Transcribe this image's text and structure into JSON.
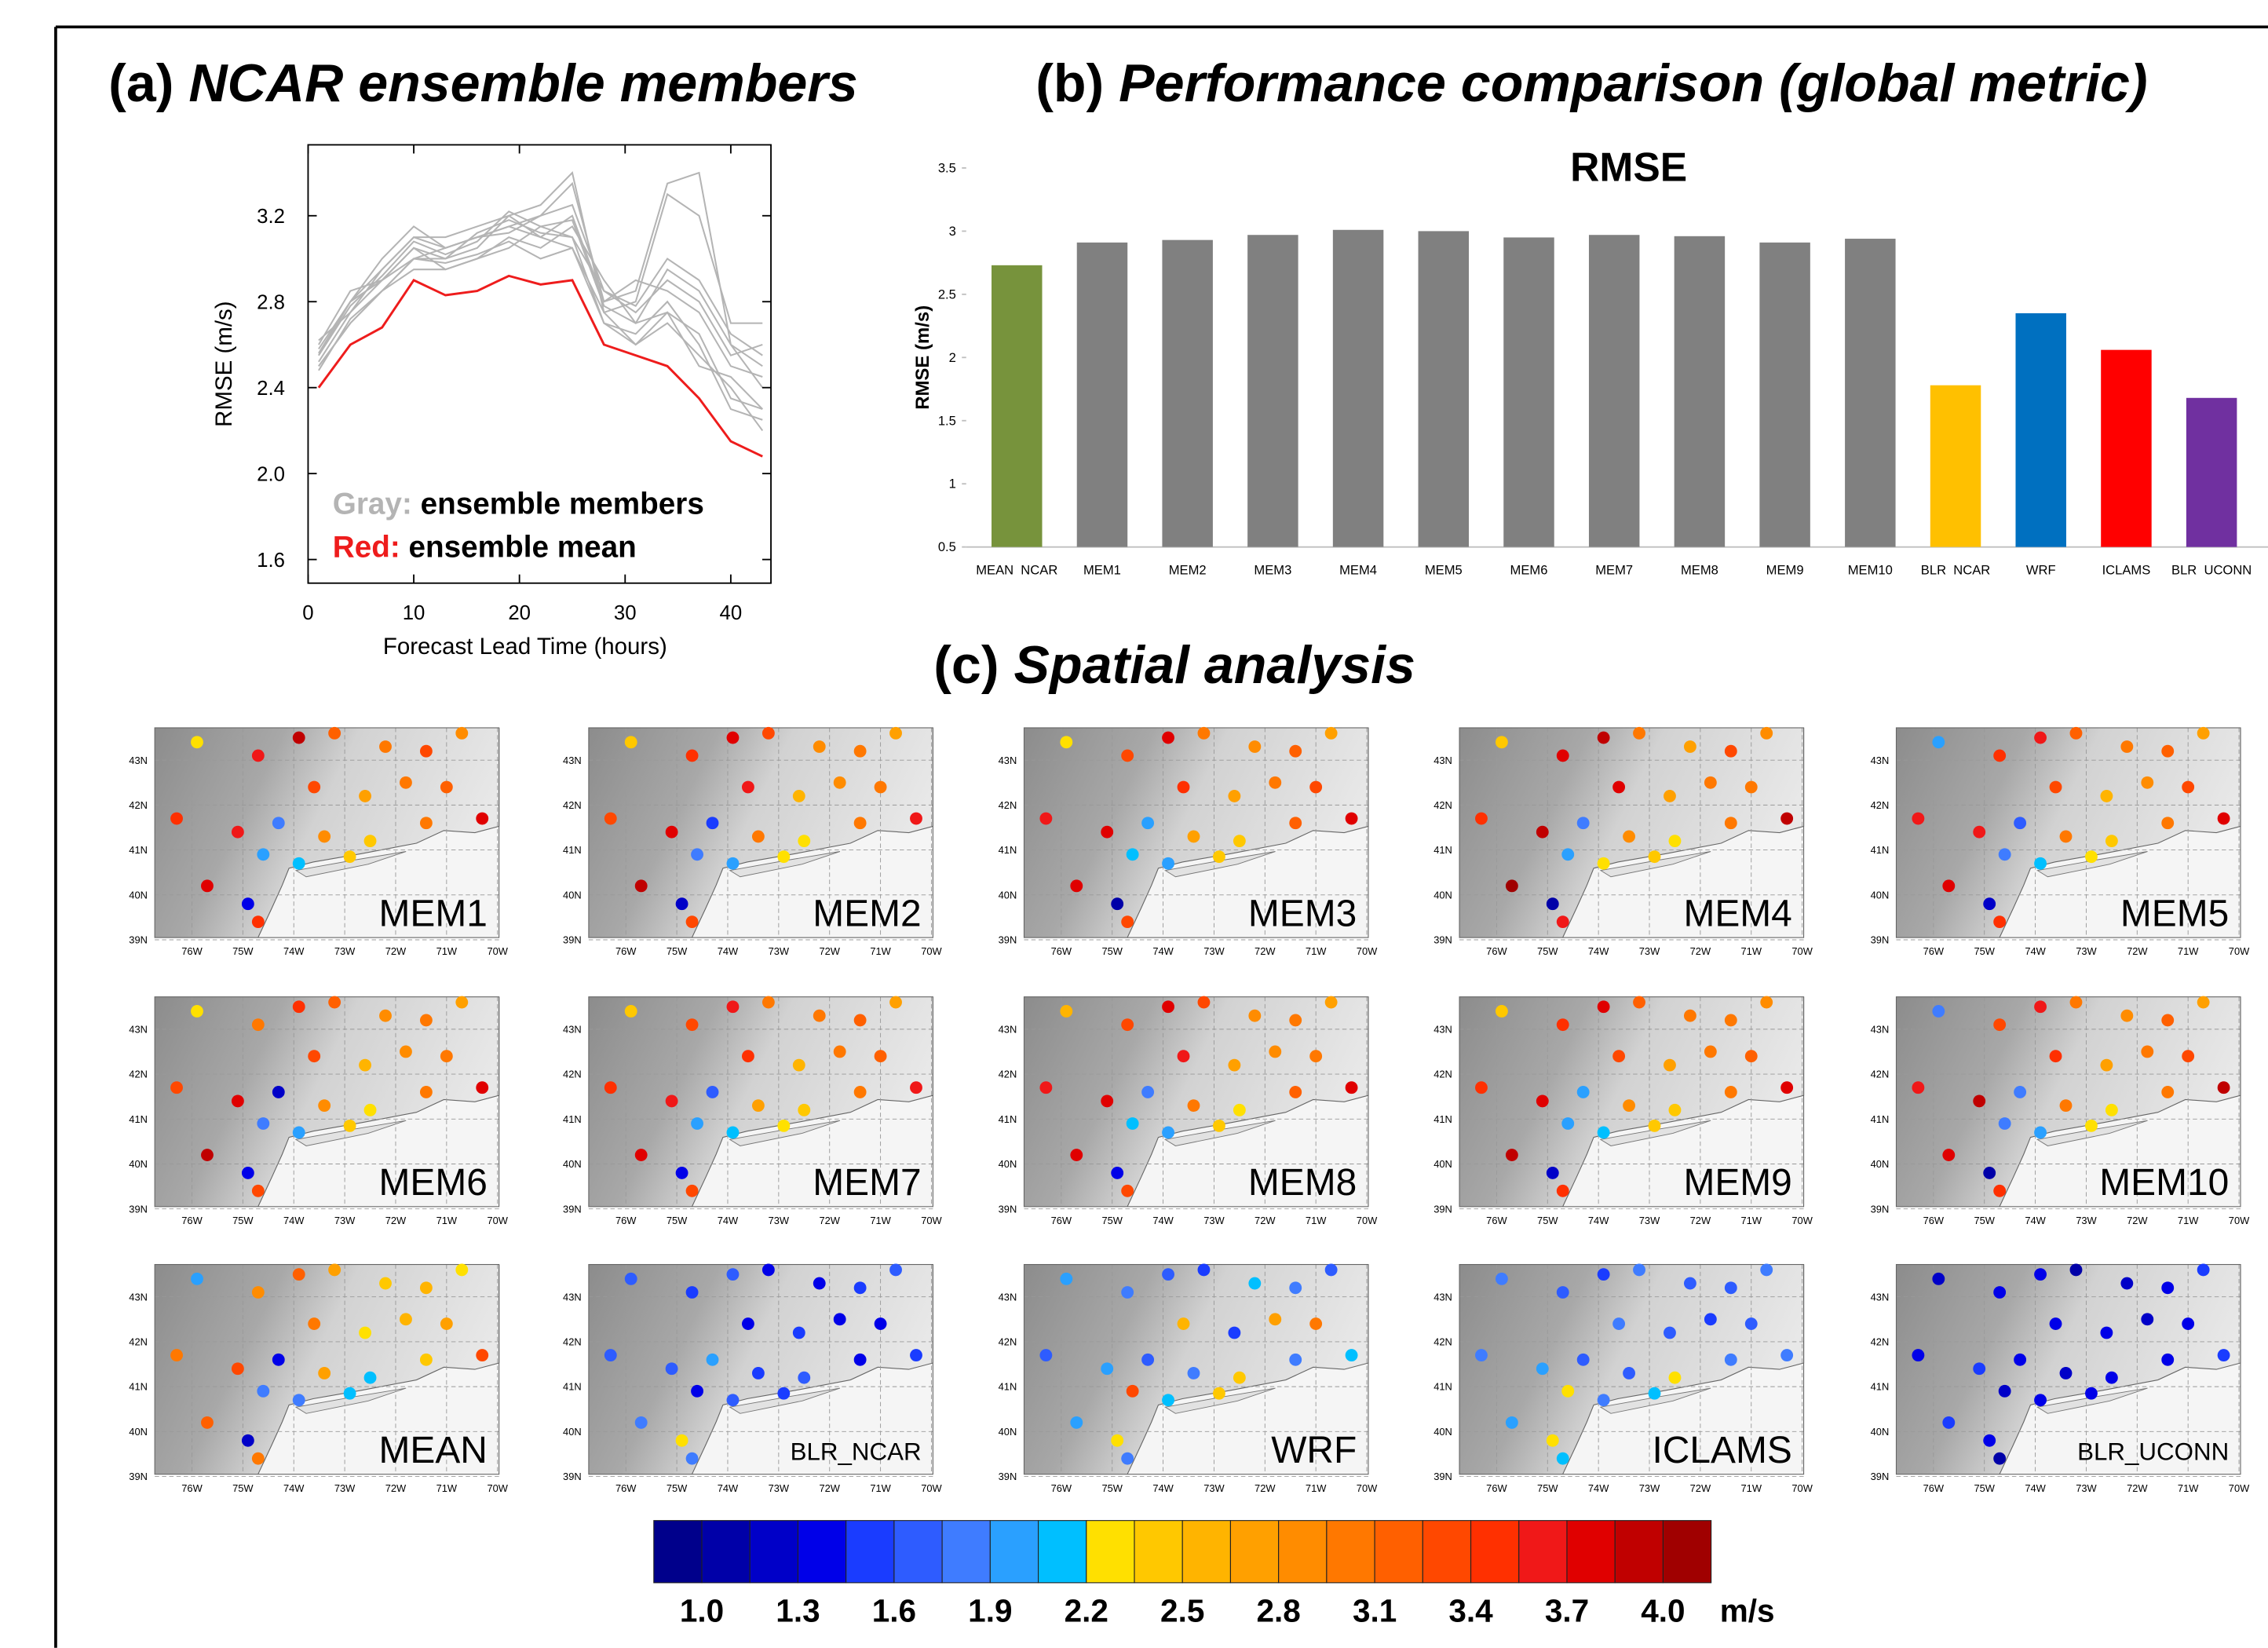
{
  "chart_data": [
    {
      "type": "line",
      "label": "(a)",
      "title": "NCAR ensemble members",
      "xlabel": "Forecast Lead Time (hours)",
      "ylabel": "RMSE (m/s)",
      "x": [
        1,
        4,
        7,
        10,
        13,
        16,
        19,
        22,
        25,
        28,
        31,
        34,
        37,
        40,
        43
      ],
      "series": [
        {
          "color": "#b4b4b4",
          "values": [
            2.55,
            2.8,
            2.95,
            3.1,
            3.05,
            3.1,
            3.15,
            3.2,
            3.35,
            2.8,
            2.85,
            3.35,
            3.4,
            2.6,
            2.4
          ]
        },
        {
          "color": "#b4b4b4",
          "values": [
            2.5,
            2.7,
            2.85,
            3.0,
            3.0,
            3.05,
            3.2,
            3.25,
            3.4,
            2.75,
            2.8,
            3.3,
            3.2,
            2.7,
            2.7
          ]
        },
        {
          "color": "#b4b4b4",
          "values": [
            2.6,
            2.85,
            2.9,
            3.05,
            2.95,
            3.0,
            3.1,
            3.05,
            3.15,
            2.9,
            2.7,
            2.75,
            2.65,
            2.35,
            2.3
          ]
        },
        {
          "color": "#b4b4b4",
          "values": [
            2.52,
            2.75,
            2.95,
            3.1,
            3.1,
            3.15,
            3.2,
            3.1,
            3.05,
            2.75,
            2.6,
            2.7,
            2.55,
            2.4,
            2.2
          ]
        },
        {
          "color": "#b4b4b4",
          "values": [
            2.58,
            2.8,
            3.0,
            3.15,
            3.05,
            3.1,
            3.15,
            3.1,
            3.2,
            2.8,
            2.9,
            2.85,
            2.75,
            2.5,
            2.45
          ]
        },
        {
          "color": "#b4b4b4",
          "values": [
            2.5,
            2.7,
            2.85,
            2.95,
            2.95,
            3.0,
            3.05,
            3.15,
            3.1,
            2.7,
            2.65,
            2.8,
            2.6,
            2.3,
            2.25
          ]
        },
        {
          "color": "#b4b4b4",
          "values": [
            2.62,
            2.75,
            2.9,
            3.05,
            3.0,
            3.12,
            3.18,
            3.12,
            3.1,
            2.85,
            2.75,
            2.9,
            2.8,
            2.55,
            2.6
          ]
        },
        {
          "color": "#b4b4b4",
          "values": [
            2.48,
            2.72,
            2.85,
            3.0,
            2.98,
            3.02,
            3.08,
            3.0,
            3.05,
            2.7,
            2.6,
            2.75,
            2.5,
            2.45,
            2.3
          ]
        },
        {
          "color": "#b4b4b4",
          "values": [
            2.55,
            2.78,
            2.92,
            3.08,
            3.02,
            3.08,
            3.22,
            3.15,
            3.18,
            2.78,
            2.7,
            2.95,
            2.85,
            2.6,
            2.5
          ]
        },
        {
          "color": "#b4b4b4",
          "values": [
            2.56,
            2.8,
            2.9,
            3.0,
            3.05,
            3.1,
            3.12,
            3.2,
            3.25,
            2.85,
            2.78,
            3.0,
            2.9,
            2.65,
            2.55
          ]
        },
        {
          "color": "#ee1c1c",
          "values": [
            2.4,
            2.6,
            2.68,
            2.9,
            2.83,
            2.85,
            2.92,
            2.88,
            2.9,
            2.6,
            2.55,
            2.5,
            2.35,
            2.15,
            2.08
          ]
        }
      ],
      "legend": [
        {
          "key": "Gray:",
          "text": "ensemble members",
          "series": 0
        },
        {
          "key": "Red:",
          "text": "ensemble mean",
          "series": 10
        }
      ],
      "xlim": [
        0,
        43.8
      ],
      "ylim": [
        1.49,
        3.53
      ],
      "xticks": [
        0,
        10,
        20,
        30,
        40
      ],
      "yticks": [
        1.6,
        {
          "value": 2,
          "label": "2.0"
        },
        2.4,
        2.8,
        3.2
      ]
    },
    {
      "type": "bar",
      "label": "(b)",
      "title": "Performance comparison (global metric)",
      "subtitle": "RMSE",
      "ylabel": "RMSE (m/s)",
      "categories": [
        "MEAN  NCAR",
        "MEM1",
        "MEM2",
        "MEM3",
        "MEM4",
        "MEM5",
        "MEM6",
        "MEM7",
        "MEM8",
        "MEM9",
        "MEM10",
        "BLR  NCAR",
        "WRF",
        "ICLAMS",
        "BLR  UCONN"
      ],
      "values": [
        2.73,
        2.91,
        2.93,
        2.97,
        3.01,
        3.0,
        2.95,
        2.97,
        2.96,
        2.91,
        2.94,
        1.78,
        2.35,
        2.06,
        1.68
      ],
      "colors": [
        "#77933c",
        "#808080",
        "#808080",
        "#808080",
        "#808080",
        "#808080",
        "#808080",
        "#808080",
        "#808080",
        "#808080",
        "#808080",
        "#ffc000",
        "#0070c0",
        "#ff0000",
        "#7030a0"
      ],
      "ylim": [
        0.5,
        3.5
      ],
      "yticks": [
        0.5,
        1,
        1.5,
        2,
        2.5,
        3,
        3.5
      ]
    },
    {
      "type": "map",
      "label": "(c)",
      "title": "Spatial analysis",
      "lonlim": [
        -76.73,
        -69.97
      ],
      "latlim": [
        39.05,
        43.72
      ],
      "lonticks": [
        {
          "value": -76,
          "label": "76W"
        },
        {
          "value": -75,
          "label": "75W"
        },
        {
          "value": -74,
          "label": "74W"
        },
        {
          "value": -73,
          "label": "73W"
        },
        {
          "value": -72,
          "label": "72W"
        },
        {
          "value": -71,
          "label": "71W"
        },
        {
          "value": -70,
          "label": "70W"
        }
      ],
      "latticks": [
        {
          "value": 39,
          "label": "39N"
        },
        {
          "value": 40,
          "label": "40N"
        },
        {
          "value": 41,
          "label": "41N"
        },
        {
          "value": 42,
          "label": "42N"
        },
        {
          "value": 43,
          "label": "43N"
        }
      ],
      "stations": {
        "lon": [
          -75.9,
          -74.7,
          -73.9,
          -73.2,
          -72.2,
          -71.4,
          -70.7,
          -73.6,
          -72.6,
          -71.8,
          -71.0,
          -76.3,
          -75.1,
          -74.3,
          -73.4,
          -72.5,
          -71.4,
          -70.3,
          -74.6,
          -73.9,
          -72.9,
          -75.7,
          -74.9,
          -74.7
        ],
        "lat": [
          43.4,
          43.1,
          43.5,
          43.6,
          43.3,
          43.2,
          43.6,
          42.4,
          42.2,
          42.5,
          42.4,
          41.7,
          41.4,
          41.6,
          41.3,
          41.2,
          41.6,
          41.7,
          40.9,
          40.7,
          40.85,
          40.2,
          39.8,
          39.4
        ]
      },
      "maps": [
        {
          "name": "MEM1",
          "values": [
            2.3,
            3.6,
            3.9,
            3.2,
            3.0,
            3.3,
            2.9,
            3.4,
            2.7,
            3.0,
            3.2,
            3.5,
            3.6,
            1.9,
            2.9,
            2.4,
            3.1,
            3.8,
            2.0,
            2.1,
            2.4,
            3.7,
            1.3,
            3.5
          ]
        },
        {
          "name": "MEM2",
          "values": [
            2.4,
            3.5,
            3.7,
            3.3,
            2.9,
            3.1,
            2.8,
            3.6,
            2.6,
            2.9,
            3.1,
            3.4,
            3.8,
            1.5,
            3.0,
            2.3,
            3.0,
            3.6,
            1.9,
            2.0,
            2.3,
            3.9,
            1.2,
            3.4
          ]
        },
        {
          "name": "MEM3",
          "values": [
            2.2,
            3.4,
            3.8,
            3.1,
            2.9,
            3.2,
            2.7,
            3.5,
            2.8,
            3.0,
            3.3,
            3.6,
            3.7,
            2.0,
            2.8,
            2.4,
            3.2,
            3.7,
            2.1,
            2.0,
            2.5,
            3.8,
            1.1,
            3.3
          ]
        },
        {
          "name": "MEM4",
          "values": [
            2.5,
            3.7,
            3.9,
            3.0,
            2.8,
            3.3,
            2.9,
            3.7,
            2.7,
            3.1,
            3.0,
            3.5,
            3.9,
            1.8,
            2.9,
            2.3,
            3.1,
            3.9,
            2.0,
            2.2,
            2.4,
            4.0,
            1.0,
            3.6
          ]
        },
        {
          "name": "MEM5",
          "values": [
            2.0,
            3.5,
            3.6,
            3.2,
            3.1,
            3.2,
            2.8,
            3.4,
            2.6,
            2.9,
            3.4,
            3.6,
            3.6,
            1.7,
            3.0,
            2.5,
            3.0,
            3.8,
            1.9,
            2.1,
            2.3,
            3.8,
            1.2,
            3.5
          ]
        },
        {
          "name": "MEM6",
          "values": [
            2.3,
            3.0,
            3.5,
            3.2,
            2.9,
            3.1,
            2.8,
            3.3,
            2.6,
            2.9,
            3.1,
            3.4,
            3.7,
            1.2,
            2.9,
            2.3,
            3.0,
            3.7,
            1.8,
            2.0,
            2.4,
            3.9,
            1.3,
            3.4
          ]
        },
        {
          "name": "MEM7",
          "values": [
            2.4,
            3.3,
            3.6,
            3.1,
            3.0,
            3.2,
            2.7,
            3.5,
            2.6,
            3.0,
            3.2,
            3.5,
            3.6,
            1.6,
            2.8,
            2.4,
            3.1,
            3.6,
            2.0,
            2.1,
            2.3,
            3.7,
            1.4,
            3.3
          ]
        },
        {
          "name": "MEM8",
          "values": [
            2.6,
            3.4,
            3.7,
            3.3,
            2.9,
            3.0,
            2.8,
            3.6,
            2.7,
            2.9,
            3.1,
            3.6,
            3.8,
            1.9,
            3.0,
            2.3,
            3.2,
            3.7,
            2.1,
            2.0,
            2.5,
            3.8,
            1.3,
            3.4
          ]
        },
        {
          "name": "MEM9",
          "values": [
            2.5,
            3.5,
            3.8,
            3.2,
            3.0,
            3.1,
            2.9,
            3.4,
            2.8,
            3.0,
            3.2,
            3.5,
            3.7,
            2.0,
            2.9,
            2.4,
            3.0,
            3.8,
            2.0,
            2.1,
            2.4,
            3.9,
            1.2,
            3.5
          ]
        },
        {
          "name": "MEM10",
          "values": [
            1.9,
            3.4,
            3.6,
            3.1,
            2.9,
            3.2,
            2.8,
            3.5,
            2.7,
            3.0,
            3.3,
            3.6,
            3.9,
            1.8,
            3.0,
            2.3,
            3.1,
            3.9,
            1.9,
            2.0,
            2.3,
            3.8,
            1.1,
            3.5
          ]
        },
        {
          "name": "MEAN",
          "values": [
            2.0,
            2.9,
            3.2,
            2.8,
            2.4,
            2.6,
            2.3,
            3.1,
            2.2,
            2.6,
            2.8,
            3.0,
            3.3,
            1.4,
            2.7,
            2.1,
            2.5,
            3.3,
            1.8,
            1.9,
            2.1,
            3.2,
            1.2,
            3.0
          ]
        },
        {
          "name": "BLR_NCAR",
          "values": [
            1.7,
            1.5,
            1.6,
            1.4,
            1.3,
            1.5,
            1.6,
            1.4,
            1.5,
            1.3,
            1.4,
            1.6,
            1.7,
            2.0,
            1.5,
            1.6,
            1.4,
            1.5,
            1.4,
            1.6,
            1.5,
            1.8,
            2.3,
            1.9
          ]
        },
        {
          "name": "WRF",
          "values": [
            2.0,
            1.9,
            1.6,
            1.5,
            2.1,
            1.8,
            1.6,
            2.6,
            1.5,
            2.8,
            3.0,
            1.6,
            2.0,
            1.7,
            1.8,
            2.4,
            1.9,
            2.1,
            3.4,
            2.1,
            2.5,
            2.0,
            2.2,
            1.9
          ]
        },
        {
          "name": "ICLAMS",
          "values": [
            1.9,
            1.7,
            1.5,
            1.8,
            1.6,
            1.7,
            1.8,
            1.8,
            1.6,
            1.5,
            1.7,
            1.9,
            2.0,
            1.7,
            1.6,
            2.3,
            1.8,
            1.9,
            2.2,
            1.9,
            2.1,
            2.0,
            2.2,
            2.1
          ]
        },
        {
          "name": "BLR_UCONN",
          "values": [
            1.2,
            1.4,
            1.3,
            1.1,
            1.2,
            1.3,
            1.5,
            1.3,
            1.4,
            1.2,
            1.3,
            1.4,
            1.5,
            1.3,
            1.2,
            1.4,
            1.3,
            1.5,
            1.2,
            1.4,
            1.3,
            1.5,
            1.4,
            1.1
          ]
        }
      ],
      "colorbar": {
        "unit": "m/s",
        "clim": [
          0.85,
          4.15
        ],
        "colors": [
          "#00008b",
          "#0000a8",
          "#0000c8",
          "#0000e8",
          "#1a3cff",
          "#2e5cff",
          "#3f7cff",
          "#2aa0ff",
          "#00bfff",
          "#ffe000",
          "#ffc800",
          "#ffb400",
          "#ffa000",
          "#ff8c00",
          "#ff7800",
          "#ff6000",
          "#ff4800",
          "#ff3000",
          "#f01818",
          "#e00000",
          "#c00000",
          "#a00000"
        ],
        "ticks": [
          {
            "value": 1,
            "label": "1.0"
          },
          1.3,
          1.6,
          1.9,
          2.2,
          2.5,
          2.8,
          3.1,
          3.4,
          3.7,
          {
            "value": 4,
            "label": "4.0"
          }
        ]
      }
    }
  ]
}
